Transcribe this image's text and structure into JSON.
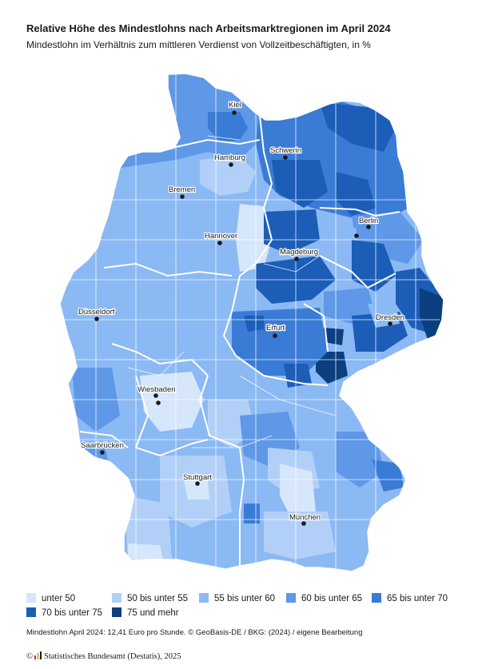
{
  "title": "Relative Höhe des Mindestlohns nach Arbeitsmarktregionen im April 2024",
  "subtitle": "Mindestlohn im Verhältnis zum mittleren Verdienst von Vollzeitbeschäftigten, in %",
  "legend": [
    {
      "label": "unter 50",
      "color": "#d6e6fb"
    },
    {
      "label": "50 bis unter 55",
      "color": "#b2d0f7"
    },
    {
      "label": "55 bis unter 60",
      "color": "#8bb9f3"
    },
    {
      "label": "60 bis unter 65",
      "color": "#5e98e6"
    },
    {
      "label": "65 bis unter 70",
      "color": "#3a7bd5"
    },
    {
      "label": "70 bis unter 75",
      "color": "#1c5db8"
    },
    {
      "label": "75 und mehr",
      "color": "#0b3f80"
    }
  ],
  "cities": [
    {
      "name": "Kiel"
    },
    {
      "name": "Hamburg"
    },
    {
      "name": "Schwerin"
    },
    {
      "name": "Bremen"
    },
    {
      "name": "Berlin"
    },
    {
      "name": "Hannover"
    },
    {
      "name": "Magdeburg"
    },
    {
      "name": "Düsseldorf"
    },
    {
      "name": "Erfurt"
    },
    {
      "name": "Dresden"
    },
    {
      "name": "Wiesbaden"
    },
    {
      "name": "Saarbrücken"
    },
    {
      "name": "Stuttgart"
    },
    {
      "name": "München"
    }
  ],
  "note": "Mindestlohn April 2024: 12,41 Euro pro Stunde. © GeoBasis-DE / BKG: (2024) / eigene Bearbeitung",
  "source": {
    "prefix": "©",
    "text": "Statistisches Bundesamt (Destatis), 2025"
  }
}
